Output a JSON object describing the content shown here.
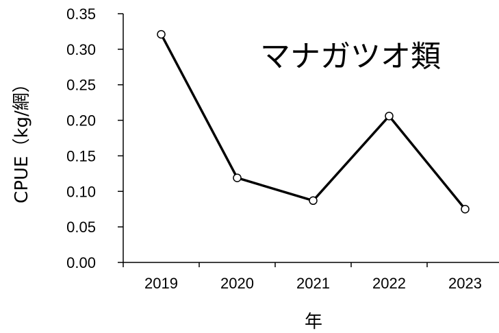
{
  "chart_data": {
    "type": "line",
    "title": "マナガツオ類",
    "xlabel": "年",
    "ylabel": "CPUE（kg/網）",
    "categories": [
      "2019",
      "2020",
      "2021",
      "2022",
      "2023"
    ],
    "series": [
      {
        "values": [
          0.321,
          0.119,
          0.087,
          0.206,
          0.075
        ]
      }
    ],
    "ylim": [
      0,
      0.35
    ],
    "yticks": [
      "0.00",
      "0.05",
      "0.10",
      "0.15",
      "0.20",
      "0.25",
      "0.30",
      "0.35"
    ],
    "grid": false,
    "legend": "none"
  }
}
